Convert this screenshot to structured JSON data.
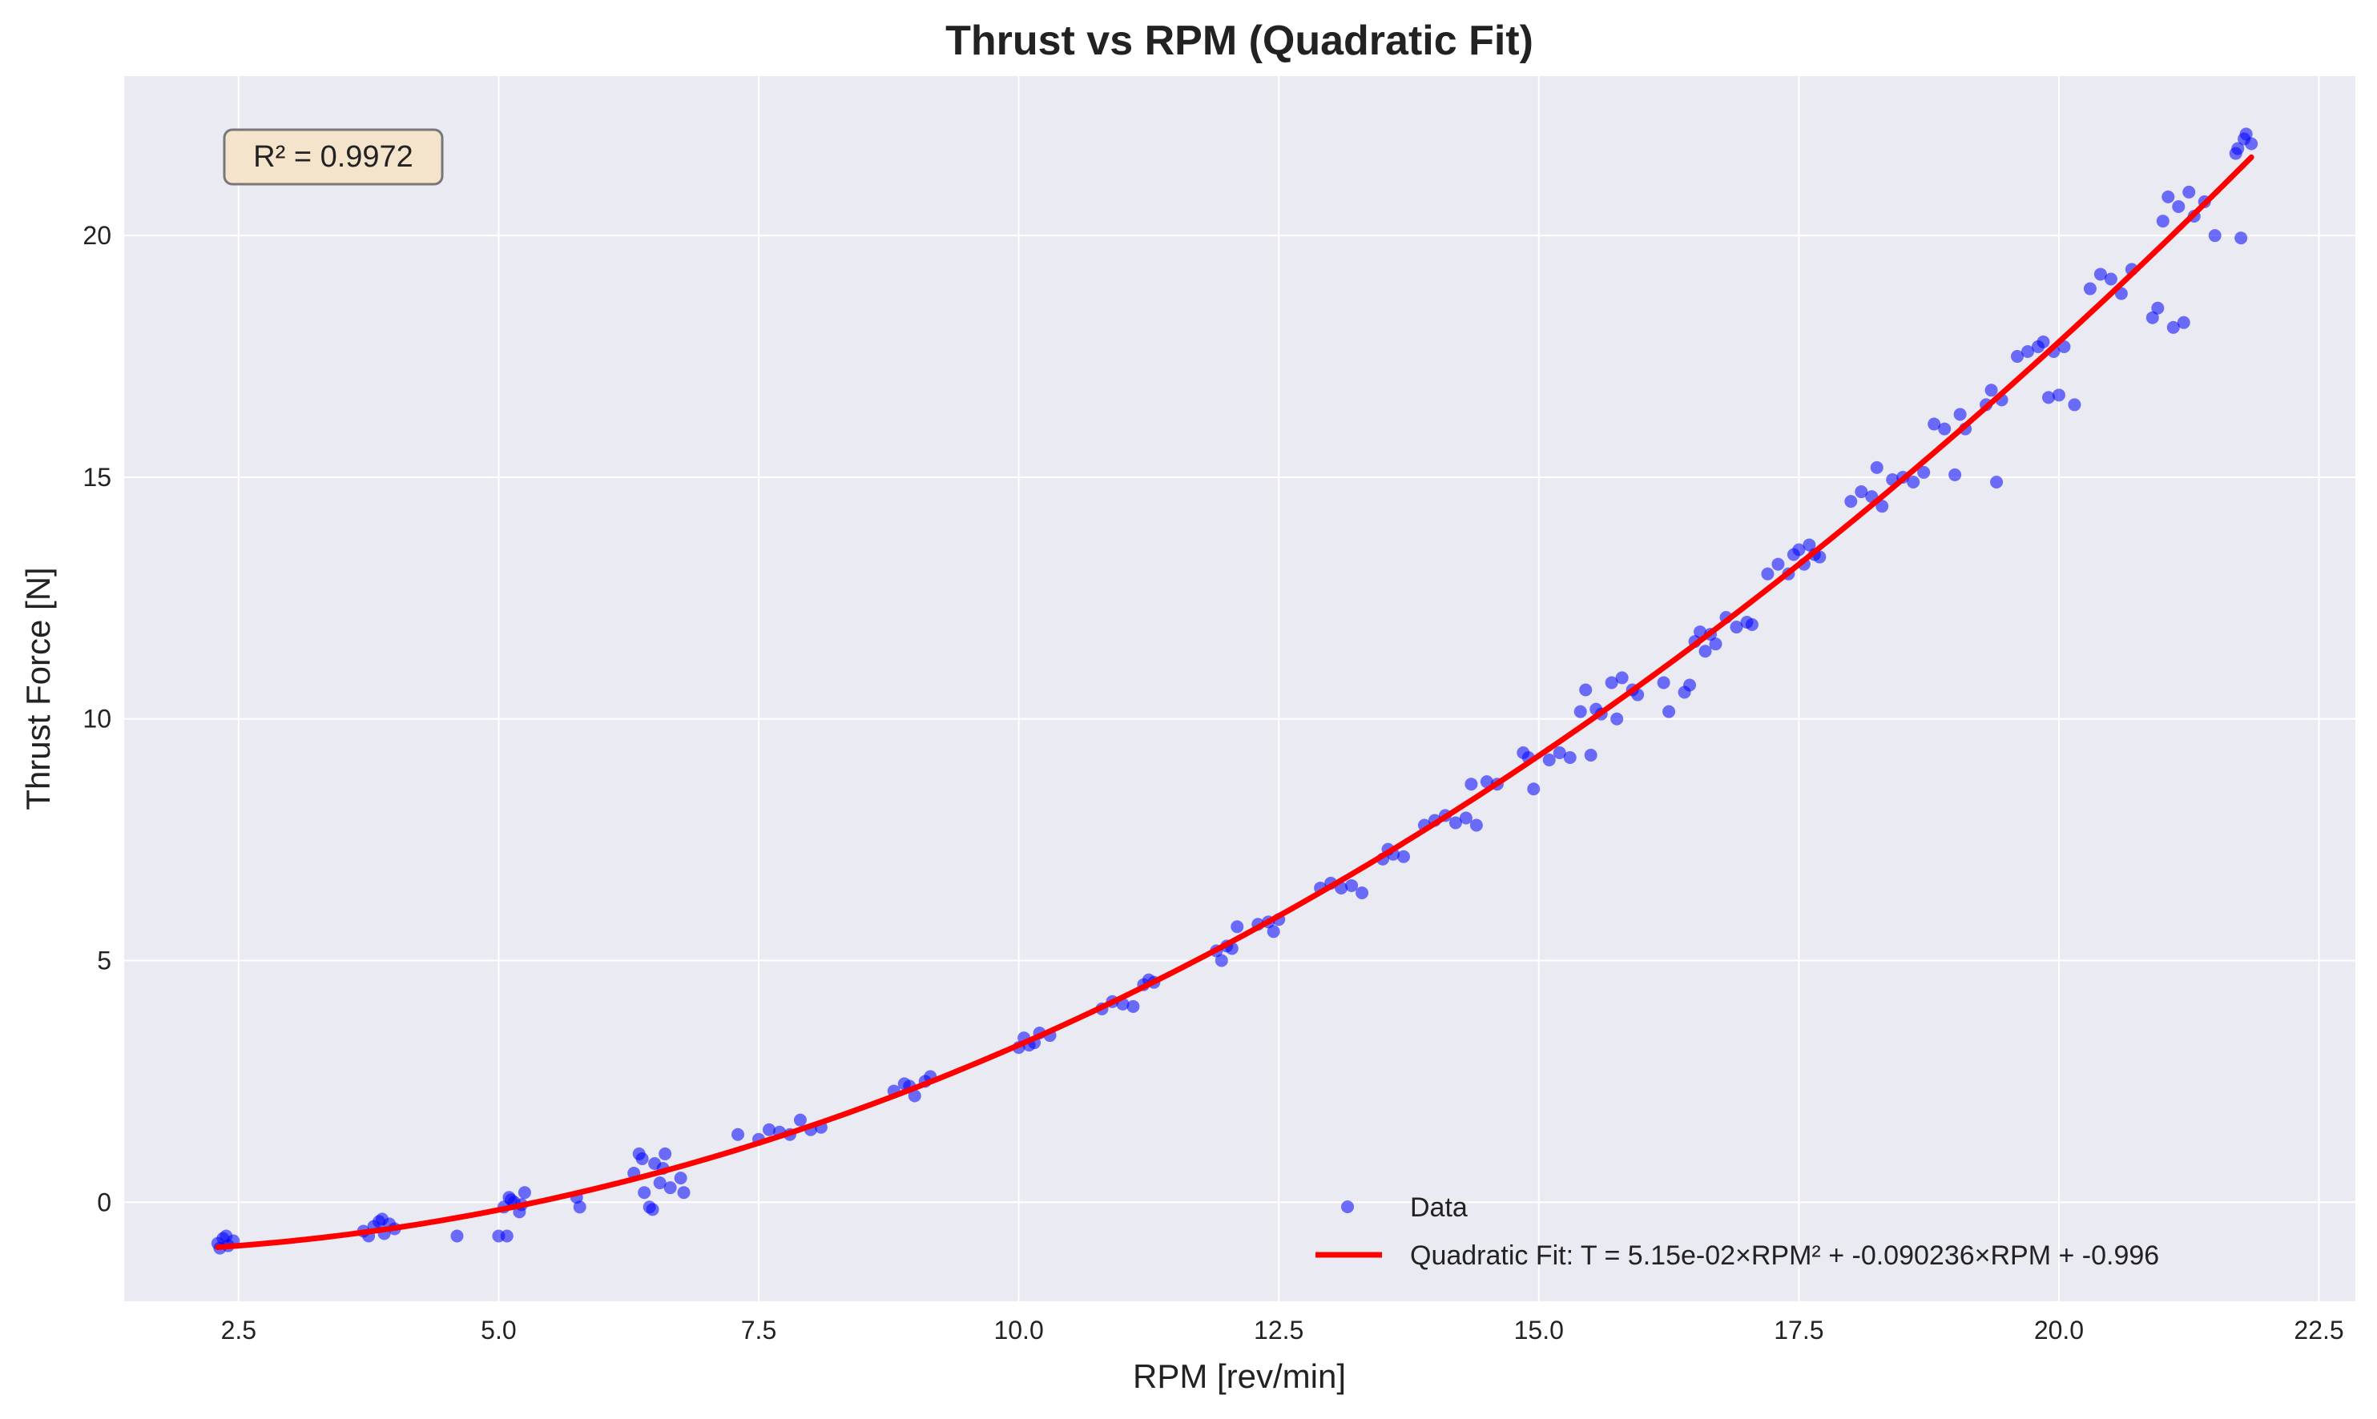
{
  "chart_data": {
    "type": "scatter",
    "title": "Thrust vs RPM (Quadratic Fit)",
    "xlabel": "RPM [rev/min]",
    "ylabel": "Thrust Force [N]",
    "xlim": [
      1.4,
      22.85
    ],
    "ylim": [
      -2.05,
      23.3
    ],
    "xticks": [
      2.5,
      5.0,
      7.5,
      10.0,
      12.5,
      15.0,
      17.5,
      20.0,
      22.5
    ],
    "xtick_labels": [
      "2.5",
      "5.0",
      "7.5",
      "10.0",
      "12.5",
      "15.0",
      "17.5",
      "20.0",
      "22.5"
    ],
    "yticks": [
      0,
      5,
      10,
      15,
      20
    ],
    "ytick_labels": [
      "0",
      "5",
      "10",
      "15",
      "20"
    ],
    "grid": true,
    "legend_position": "bottom-right",
    "annotation": "R² = 0.9972",
    "colors": {
      "plot_bg": "#eaeaf2",
      "grid": "#ffffff",
      "data": "#0000ff",
      "fit": "#ff0000",
      "annotation_bg": "#f4e4cc",
      "annotation_border": "#777777"
    },
    "series": [
      {
        "name": "Data",
        "kind": "scatter",
        "points": [
          [
            2.3,
            -0.85
          ],
          [
            2.35,
            -0.75
          ],
          [
            2.4,
            -0.9
          ],
          [
            2.45,
            -0.8
          ],
          [
            2.32,
            -0.95
          ],
          [
            2.38,
            -0.7
          ],
          [
            3.7,
            -0.6
          ],
          [
            3.8,
            -0.5
          ],
          [
            3.85,
            -0.4
          ],
          [
            3.9,
            -0.65
          ],
          [
            3.95,
            -0.45
          ],
          [
            4.0,
            -0.55
          ],
          [
            3.75,
            -0.7
          ],
          [
            3.88,
            -0.35
          ],
          [
            4.6,
            -0.7
          ],
          [
            5.0,
            -0.7
          ],
          [
            5.05,
            -0.1
          ],
          [
            5.1,
            0.1
          ],
          [
            5.15,
            0.0
          ],
          [
            5.2,
            -0.2
          ],
          [
            5.25,
            0.2
          ],
          [
            5.08,
            -0.7
          ],
          [
            5.12,
            0.05
          ],
          [
            5.22,
            -0.05
          ],
          [
            5.75,
            0.1
          ],
          [
            5.78,
            -0.1
          ],
          [
            6.3,
            0.6
          ],
          [
            6.35,
            1.0
          ],
          [
            6.4,
            0.2
          ],
          [
            6.45,
            -0.1
          ],
          [
            6.5,
            0.8
          ],
          [
            6.55,
            0.4
          ],
          [
            6.6,
            1.0
          ],
          [
            6.65,
            0.3
          ],
          [
            6.38,
            0.9
          ],
          [
            6.48,
            -0.15
          ],
          [
            6.58,
            0.7
          ],
          [
            6.75,
            0.5
          ],
          [
            6.78,
            0.2
          ],
          [
            7.3,
            1.4
          ],
          [
            7.5,
            1.3
          ],
          [
            7.6,
            1.5
          ],
          [
            7.7,
            1.45
          ],
          [
            7.8,
            1.4
          ],
          [
            7.9,
            1.7
          ],
          [
            8.0,
            1.5
          ],
          [
            8.1,
            1.55
          ],
          [
            8.8,
            2.3
          ],
          [
            8.9,
            2.45
          ],
          [
            9.0,
            2.2
          ],
          [
            9.1,
            2.5
          ],
          [
            9.15,
            2.6
          ],
          [
            8.95,
            2.4
          ],
          [
            10.0,
            3.2
          ],
          [
            10.05,
            3.4
          ],
          [
            10.1,
            3.25
          ],
          [
            10.2,
            3.5
          ],
          [
            10.3,
            3.45
          ],
          [
            10.15,
            3.3
          ],
          [
            10.8,
            4.0
          ],
          [
            10.9,
            4.15
          ],
          [
            11.0,
            4.1
          ],
          [
            11.1,
            4.05
          ],
          [
            11.2,
            4.5
          ],
          [
            11.25,
            4.6
          ],
          [
            11.3,
            4.55
          ],
          [
            11.9,
            5.2
          ],
          [
            11.95,
            5.0
          ],
          [
            12.0,
            5.3
          ],
          [
            12.05,
            5.25
          ],
          [
            12.1,
            5.7
          ],
          [
            12.3,
            5.75
          ],
          [
            12.4,
            5.8
          ],
          [
            12.5,
            5.85
          ],
          [
            12.45,
            5.6
          ],
          [
            12.9,
            6.5
          ],
          [
            13.0,
            6.6
          ],
          [
            13.1,
            6.5
          ],
          [
            13.2,
            6.55
          ],
          [
            13.3,
            6.4
          ],
          [
            13.5,
            7.1
          ],
          [
            13.6,
            7.2
          ],
          [
            13.7,
            7.15
          ],
          [
            13.55,
            7.3
          ],
          [
            13.9,
            7.8
          ],
          [
            14.0,
            7.9
          ],
          [
            14.1,
            8.0
          ],
          [
            14.2,
            7.85
          ],
          [
            14.3,
            7.95
          ],
          [
            14.35,
            8.65
          ],
          [
            14.4,
            7.8
          ],
          [
            14.5,
            8.7
          ],
          [
            14.6,
            8.65
          ],
          [
            14.85,
            9.3
          ],
          [
            14.9,
            9.2
          ],
          [
            14.95,
            8.55
          ],
          [
            15.1,
            9.15
          ],
          [
            15.2,
            9.3
          ],
          [
            15.3,
            9.2
          ],
          [
            15.4,
            10.15
          ],
          [
            15.45,
            10.6
          ],
          [
            15.5,
            9.25
          ],
          [
            15.55,
            10.2
          ],
          [
            15.6,
            10.1
          ],
          [
            15.7,
            10.75
          ],
          [
            15.75,
            10.0
          ],
          [
            15.8,
            10.85
          ],
          [
            15.9,
            10.6
          ],
          [
            15.95,
            10.5
          ],
          [
            16.2,
            10.75
          ],
          [
            16.25,
            10.15
          ],
          [
            16.4,
            10.55
          ],
          [
            16.45,
            10.7
          ],
          [
            16.5,
            11.6
          ],
          [
            16.55,
            11.8
          ],
          [
            16.6,
            11.4
          ],
          [
            16.65,
            11.75
          ],
          [
            16.7,
            11.55
          ],
          [
            16.8,
            12.1
          ],
          [
            16.9,
            11.9
          ],
          [
            17.0,
            12.0
          ],
          [
            17.05,
            11.95
          ],
          [
            17.2,
            13.0
          ],
          [
            17.3,
            13.2
          ],
          [
            17.4,
            13.0
          ],
          [
            17.45,
            13.4
          ],
          [
            17.5,
            13.5
          ],
          [
            17.55,
            13.2
          ],
          [
            17.6,
            13.6
          ],
          [
            17.65,
            13.4
          ],
          [
            17.7,
            13.35
          ],
          [
            18.0,
            14.5
          ],
          [
            18.1,
            14.7
          ],
          [
            18.2,
            14.6
          ],
          [
            18.25,
            15.2
          ],
          [
            18.3,
            14.4
          ],
          [
            18.4,
            14.95
          ],
          [
            18.5,
            15.0
          ],
          [
            18.6,
            14.9
          ],
          [
            18.7,
            15.1
          ],
          [
            18.8,
            16.1
          ],
          [
            18.9,
            16.0
          ],
          [
            19.0,
            15.05
          ],
          [
            19.05,
            16.3
          ],
          [
            19.1,
            16.0
          ],
          [
            19.3,
            16.5
          ],
          [
            19.35,
            16.8
          ],
          [
            19.4,
            14.9
          ],
          [
            19.45,
            16.6
          ],
          [
            19.6,
            17.5
          ],
          [
            19.7,
            17.6
          ],
          [
            19.8,
            17.7
          ],
          [
            19.85,
            17.8
          ],
          [
            19.9,
            16.65
          ],
          [
            19.95,
            17.6
          ],
          [
            20.0,
            16.7
          ],
          [
            20.05,
            17.7
          ],
          [
            20.15,
            16.5
          ],
          [
            20.3,
            18.9
          ],
          [
            20.4,
            19.2
          ],
          [
            20.5,
            19.1
          ],
          [
            20.6,
            18.8
          ],
          [
            20.7,
            19.3
          ],
          [
            20.9,
            18.3
          ],
          [
            20.95,
            18.5
          ],
          [
            21.0,
            20.3
          ],
          [
            21.05,
            20.8
          ],
          [
            21.1,
            18.1
          ],
          [
            21.15,
            20.6
          ],
          [
            21.2,
            18.2
          ],
          [
            21.25,
            20.9
          ],
          [
            21.3,
            20.4
          ],
          [
            21.4,
            20.7
          ],
          [
            21.5,
            20.0
          ],
          [
            21.7,
            21.7
          ],
          [
            21.75,
            19.95
          ],
          [
            21.8,
            22.1
          ],
          [
            21.85,
            21.9
          ],
          [
            21.78,
            22.0
          ],
          [
            21.72,
            21.8
          ]
        ]
      },
      {
        "name": "Quadratic Fit: T = 5.15e-02×RPM² + -0.090236×RPM + -0.996",
        "kind": "line",
        "coefficients": {
          "a": 0.0515,
          "b": -0.090236,
          "c": -0.996
        },
        "x_range": [
          2.3,
          21.85
        ]
      }
    ]
  }
}
